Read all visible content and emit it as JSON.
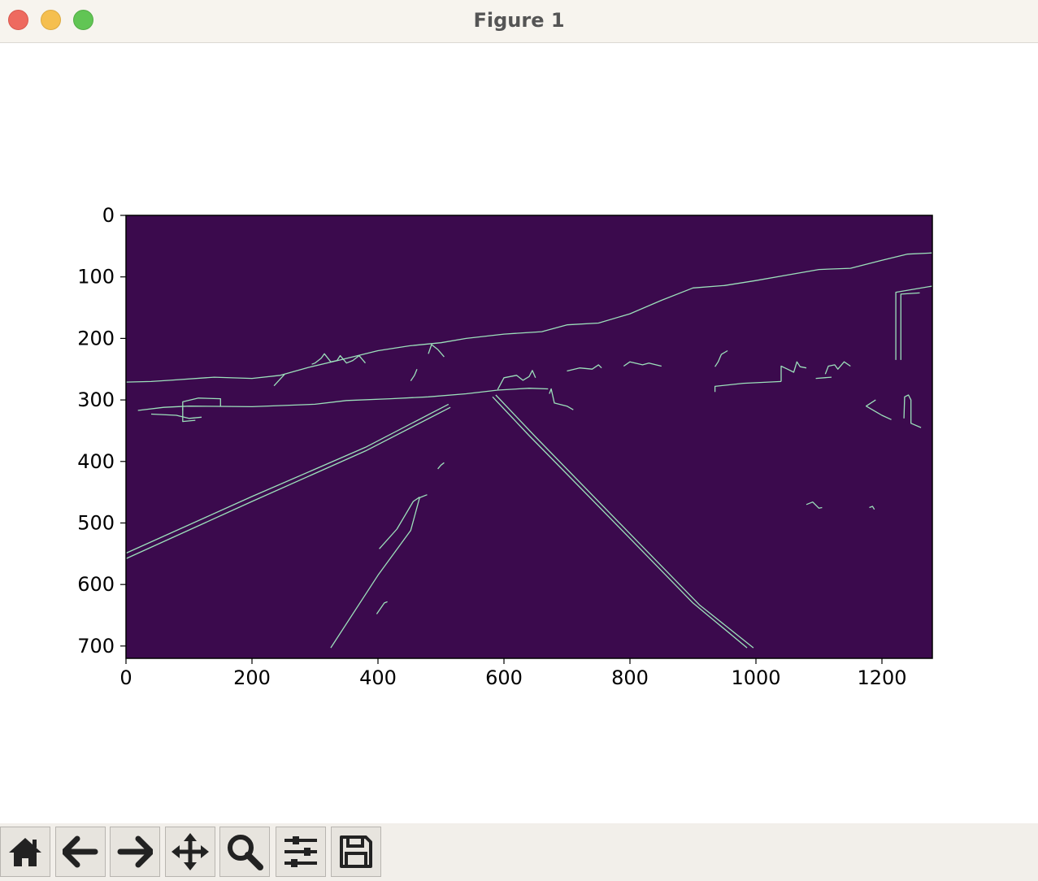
{
  "window": {
    "title": "Figure 1"
  },
  "toolbar": {
    "buttons": [
      {
        "icon": "home-icon"
      },
      {
        "icon": "back-arrow-icon"
      },
      {
        "icon": "forward-arrow-icon"
      },
      {
        "icon": "pan-icon"
      },
      {
        "icon": "zoom-icon"
      },
      {
        "icon": "configure-subplots-icon"
      },
      {
        "icon": "save-icon"
      }
    ]
  },
  "chart_data": {
    "type": "heatmap",
    "title": "",
    "xlabel": "",
    "ylabel": "",
    "xlim": [
      0,
      1280
    ],
    "ylim": [
      720,
      0
    ],
    "x_ticks": [
      "0",
      "200",
      "400",
      "600",
      "800",
      "1000",
      "1200"
    ],
    "y_ticks": [
      "0",
      "100",
      "200",
      "300",
      "400",
      "500",
      "600",
      "700"
    ],
    "colormap": "viridis",
    "background_color": "#3b0a4d",
    "edge_color": "#9ce0bb",
    "grid": false,
    "edges": [
      [
        [
          0,
          558
        ],
        [
          200,
          465
        ],
        [
          380,
          383
        ],
        [
          515,
          312
        ]
      ],
      [
        [
          0,
          549
        ],
        [
          200,
          457
        ],
        [
          380,
          377
        ],
        [
          512,
          307
        ]
      ],
      [
        [
          325,
          703
        ],
        [
          400,
          585
        ],
        [
          452,
          512
        ],
        [
          466,
          459
        ],
        [
          478,
          454
        ]
      ],
      [
        [
          402,
          542
        ],
        [
          430,
          510
        ],
        [
          456,
          465
        ],
        [
          466,
          458
        ]
      ],
      [
        [
          582,
          295
        ],
        [
          640,
          358
        ],
        [
          800,
          525
        ],
        [
          900,
          630
        ],
        [
          986,
          703
        ]
      ],
      [
        [
          587,
          292
        ],
        [
          650,
          360
        ],
        [
          810,
          528
        ],
        [
          910,
          633
        ],
        [
          996,
          703
        ]
      ],
      [
        [
          0,
          271
        ],
        [
          40,
          270
        ],
        [
          70,
          268
        ],
        [
          140,
          263
        ],
        [
          200,
          265
        ],
        [
          245,
          260
        ],
        [
          290,
          247
        ],
        [
          340,
          235
        ],
        [
          400,
          220
        ],
        [
          450,
          212
        ],
        [
          500,
          207
        ],
        [
          540,
          200
        ],
        [
          600,
          193
        ],
        [
          660,
          189
        ],
        [
          700,
          178
        ],
        [
          750,
          175
        ],
        [
          800,
          160
        ],
        [
          850,
          138
        ],
        [
          900,
          118
        ],
        [
          950,
          114
        ],
        [
          1000,
          106
        ],
        [
          1050,
          97
        ],
        [
          1100,
          88
        ],
        [
          1150,
          86
        ],
        [
          1200,
          73
        ],
        [
          1240,
          63
        ],
        [
          1280,
          61
        ]
      ],
      [
        [
          19,
          317
        ],
        [
          60,
          312
        ],
        [
          100,
          310
        ],
        [
          200,
          311
        ],
        [
          300,
          307
        ],
        [
          350,
          301
        ],
        [
          420,
          298
        ],
        [
          480,
          295
        ],
        [
          540,
          290
        ],
        [
          590,
          284
        ],
        [
          640,
          281
        ],
        [
          670,
          282
        ]
      ],
      [
        [
          90,
          317
        ],
        [
          90,
          303
        ],
        [
          115,
          297
        ],
        [
          150,
          298
        ],
        [
          150,
          311
        ]
      ],
      [
        [
          40,
          323
        ],
        [
          80,
          325
        ],
        [
          100,
          330
        ],
        [
          120,
          328
        ]
      ],
      [
        [
          90,
          313
        ],
        [
          90,
          335
        ],
        [
          110,
          333
        ]
      ],
      [
        [
          295,
          242
        ],
        [
          300,
          240
        ],
        [
          310,
          232
        ],
        [
          315,
          225
        ],
        [
          325,
          238
        ],
        [
          335,
          236
        ],
        [
          340,
          228
        ],
        [
          350,
          240
        ],
        [
          360,
          236
        ],
        [
          370,
          228
        ],
        [
          380,
          240
        ]
      ],
      [
        [
          235,
          277
        ],
        [
          243,
          268
        ],
        [
          252,
          258
        ]
      ],
      [
        [
          452,
          269
        ],
        [
          458,
          260
        ],
        [
          462,
          250
        ]
      ],
      [
        [
          480,
          225
        ],
        [
          485,
          210
        ],
        [
          495,
          218
        ],
        [
          505,
          230
        ]
      ],
      [
        [
          590,
          283
        ],
        [
          600,
          264
        ],
        [
          620,
          260
        ],
        [
          630,
          268
        ],
        [
          640,
          262
        ],
        [
          645,
          252
        ],
        [
          650,
          264
        ]
      ],
      [
        [
          672,
          290
        ],
        [
          675,
          282
        ],
        [
          680,
          305
        ],
        [
          700,
          310
        ],
        [
          710,
          316
        ]
      ],
      [
        [
          700,
          253
        ],
        [
          720,
          248
        ],
        [
          740,
          250
        ],
        [
          750,
          243
        ],
        [
          755,
          248
        ]
      ],
      [
        [
          790,
          245
        ],
        [
          800,
          238
        ],
        [
          820,
          243
        ],
        [
          830,
          240
        ],
        [
          850,
          245
        ]
      ],
      [
        [
          935,
          246
        ],
        [
          940,
          238
        ],
        [
          945,
          226
        ],
        [
          955,
          220
        ]
      ],
      [
        [
          935,
          287
        ],
        [
          935,
          278
        ],
        [
          980,
          273
        ],
        [
          1040,
          270
        ]
      ],
      [
        [
          1040,
          270
        ],
        [
          1040,
          245
        ],
        [
          1050,
          250
        ],
        [
          1060,
          255
        ],
        [
          1065,
          238
        ],
        [
          1070,
          246
        ],
        [
          1080,
          248
        ]
      ],
      [
        [
          1110,
          258
        ],
        [
          1115,
          245
        ],
        [
          1125,
          243
        ],
        [
          1130,
          250
        ],
        [
          1140,
          238
        ],
        [
          1150,
          245
        ]
      ],
      [
        [
          1095,
          265
        ],
        [
          1120,
          263
        ]
      ],
      [
        [
          1222,
          235
        ],
        [
          1222,
          125
        ],
        [
          1280,
          115
        ]
      ],
      [
        [
          1230,
          235
        ],
        [
          1230,
          128
        ],
        [
          1260,
          126
        ]
      ],
      [
        [
          1190,
          300
        ],
        [
          1175,
          310
        ],
        [
          1200,
          325
        ],
        [
          1215,
          332
        ]
      ],
      [
        [
          1235,
          330
        ],
        [
          1236,
          295
        ],
        [
          1242,
          292
        ],
        [
          1246,
          300
        ],
        [
          1246,
          338
        ],
        [
          1262,
          345
        ]
      ],
      [
        [
          1080,
          470
        ],
        [
          1090,
          466
        ],
        [
          1100,
          476
        ],
        [
          1105,
          475
        ]
      ],
      [
        [
          1180,
          475
        ],
        [
          1185,
          473
        ],
        [
          1188,
          478
        ]
      ],
      [
        [
          495,
          412
        ],
        [
          500,
          406
        ],
        [
          505,
          402
        ]
      ],
      [
        [
          398,
          648
        ],
        [
          410,
          630
        ],
        [
          415,
          628
        ]
      ]
    ]
  }
}
